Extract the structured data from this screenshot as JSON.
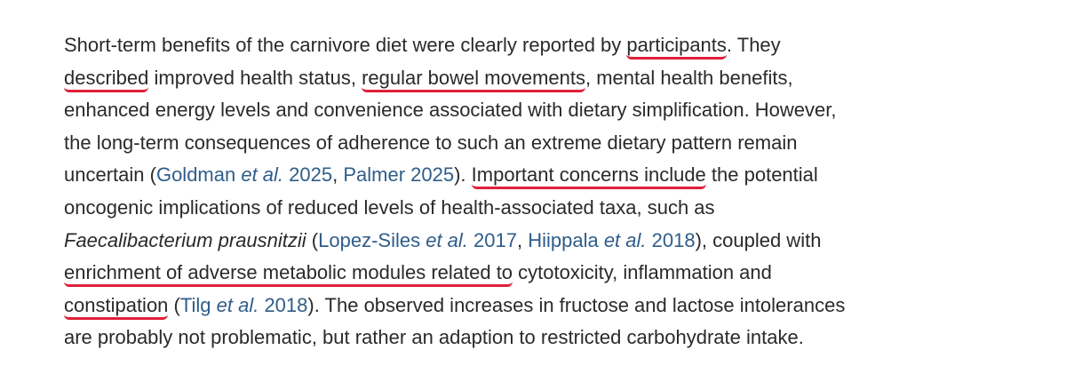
{
  "paragraph": {
    "lines": [
      [
        "Short-term benefits of the carnivore diet were clearly reported by ",
        "participants",
        ". They"
      ],
      [
        "described",
        " improved health status, ",
        "regular bowel movements",
        ", mental health benefits,"
      ],
      [
        "enhanced energy levels and convenience associated with dietary simplification. However,"
      ],
      [
        "the long-term consequences of adherence to such an extreme dietary pattern remain"
      ],
      [
        "uncertain (",
        "Goldman ",
        "et al.",
        " 2025",
        ", ",
        "Palmer 2025",
        "). ",
        "Important concerns include",
        " the potential"
      ],
      [
        "oncogenic implications of reduced levels of health-associated taxa, such as"
      ],
      [
        "Faecalibacterium prausnitzii",
        " (",
        "Lopez-Siles ",
        "et al.",
        " 2017",
        ", ",
        "Hiippala ",
        "et al.",
        " 2018",
        "), coupled with"
      ],
      [
        "enrichment of adverse metabolic modules related to",
        " cytotoxicity, inflammation and"
      ],
      [
        "constipation",
        " (",
        "Tilg ",
        "et al.",
        " 2018",
        "). The observed increases in fructose and lactose intolerances"
      ],
      [
        "are probably not problematic, but rather an adaption to restricted carbohydrate intake."
      ]
    ]
  }
}
